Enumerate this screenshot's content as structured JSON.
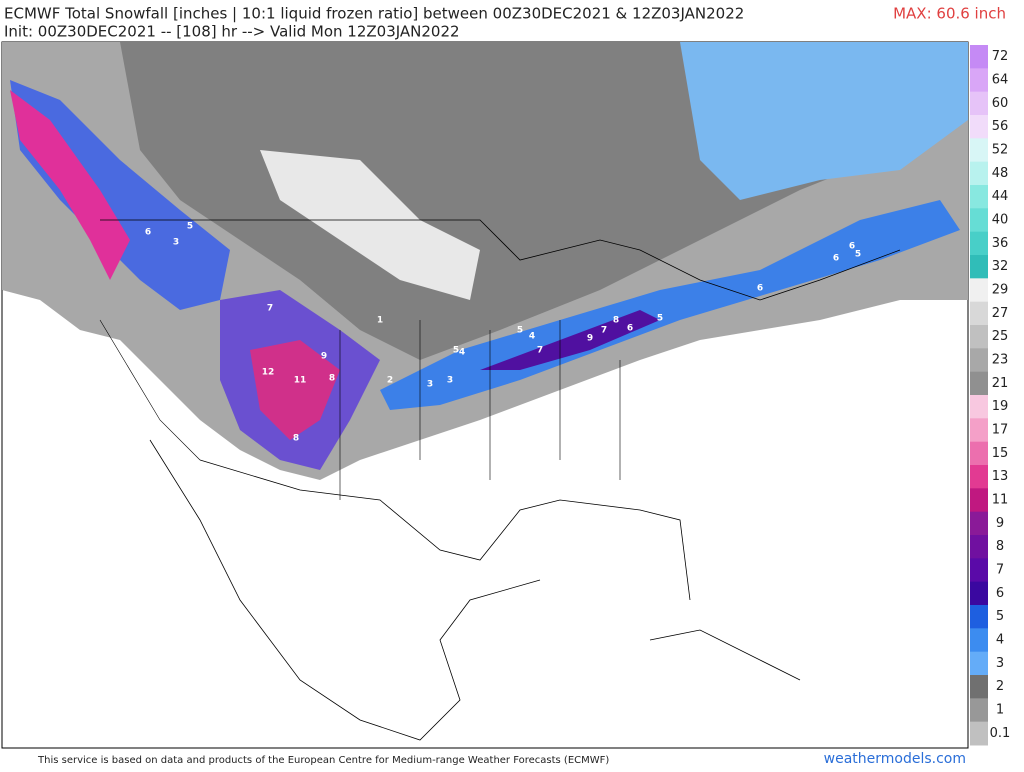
{
  "header": {
    "title": "ECMWF Total Snowfall [inches | 10:1 liquid frozen ratio] between 00Z30DEC2021 & 12Z03JAN2022",
    "subtitle": "Init: 00Z30DEC2021 -- [108] hr --> Valid Mon 12Z03JAN2022",
    "max": "MAX: 60.6 inch"
  },
  "map_labels": [
    6,
    3,
    5,
    7,
    12,
    11,
    8,
    9,
    8,
    5,
    4,
    3,
    5,
    7,
    8,
    6,
    9,
    7,
    6,
    5,
    6,
    6,
    5,
    4,
    3,
    2,
    1
  ],
  "colorbar": {
    "labels": [
      72,
      64,
      60,
      56,
      52,
      48,
      44,
      40,
      36,
      32,
      29,
      27,
      25,
      23,
      21,
      19,
      17,
      15,
      13,
      11,
      9,
      8,
      7,
      6,
      5,
      4,
      3,
      2,
      1,
      0.1
    ],
    "colors": [
      "#c58af5",
      "#d9a6f7",
      "#e6c3f8",
      "#f1dcfa",
      "#d8f6f6",
      "#b8f2ee",
      "#88e8e0",
      "#66ddd5",
      "#48cfc8",
      "#30bdb8",
      "#f0f0f0",
      "#d8d8d8",
      "#c0c0c0",
      "#a8a8a8",
      "#909090",
      "#f8c8e0",
      "#f4a0c8",
      "#ec6fae",
      "#e23a92",
      "#c01880",
      "#8a1a98",
      "#7010a0",
      "#5a0aa8",
      "#3a08a0",
      "#1e5fe0",
      "#3c8cf0",
      "#64acf8",
      "#707070",
      "#989898",
      "#c0c0c0"
    ]
  },
  "footer": {
    "notice": "This service is based on data and products of the European Centre for Medium-range Weather Forecasts (ECMWF)",
    "site": "weathermodels.com"
  }
}
